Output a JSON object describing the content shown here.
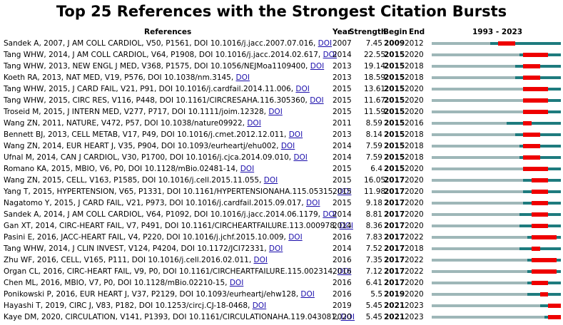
{
  "title": "Top 25 References with the Strongest Citation Bursts",
  "headers": {
    "references": "References",
    "year": "Year",
    "strength": "Strength",
    "begin": "Begin",
    "end": "End",
    "range": "1993 - 2023"
  },
  "doi_label": "DOI",
  "colors": {
    "base": "#1e7b7e",
    "pre": "#9eb7b8",
    "burst": "#ee0000"
  },
  "chart_data": {
    "type": "table",
    "title": "Top 25 References with the Strongest Citation Bursts",
    "timeline_range": [
      1993,
      2023
    ],
    "columns": [
      "References",
      "Year",
      "Strength",
      "Begin",
      "End",
      "1993 - 2023"
    ],
    "rows": [
      {
        "ref": "Sandek A, 2007, J AM COLL CARDIOL, V50, P1561, DOI 10.1016/j.jacc.2007.07.016, ",
        "year": "2007",
        "strength": "7.45",
        "begin": "2009",
        "end": "2012"
      },
      {
        "ref": "Tang WHW, 2014, J AM COLL CARDIOL, V64, P1908, DOI 10.1016/j.jacc.2014.02.617, ",
        "year": "2014",
        "strength": "22.55",
        "begin": "2015",
        "end": "2020"
      },
      {
        "ref": "Tang WHW, 2013, NEW ENGL J MED, V368, P1575, DOI 10.1056/NEJMoa1109400, ",
        "year": "2013",
        "strength": "19.14",
        "begin": "2015",
        "end": "2018"
      },
      {
        "ref": "Koeth RA, 2013, NAT MED, V19, P576, DOI 10.1038/nm.3145, ",
        "year": "2013",
        "strength": "18.59",
        "begin": "2015",
        "end": "2018"
      },
      {
        "ref": "Tang WHW, 2015, J CARD FAIL, V21, P91, DOI 10.1016/j.cardfail.2014.11.006, ",
        "year": "2015",
        "strength": "13.61",
        "begin": "2015",
        "end": "2020"
      },
      {
        "ref": "Tang WHW, 2015, CIRC RES, V116, P448, DOI 10.1161/CIRCRESAHA.116.305360, ",
        "year": "2015",
        "strength": "11.67",
        "begin": "2015",
        "end": "2020"
      },
      {
        "ref": "Troseid M, 2015, J INTERN MED, V277, P717, DOI 10.1111/joim.12328, ",
        "year": "2015",
        "strength": "11.59",
        "begin": "2015",
        "end": "2020"
      },
      {
        "ref": "Wang ZN, 2011, NATURE, V472, P57, DOI 10.1038/nature09922, ",
        "year": "2011",
        "strength": "8.59",
        "begin": "2015",
        "end": "2016"
      },
      {
        "ref": "Bennett BJ, 2013, CELL METAB, V17, P49, DOI 10.1016/j.cmet.2012.12.011, ",
        "year": "2013",
        "strength": "8.14",
        "begin": "2015",
        "end": "2018"
      },
      {
        "ref": "Wang ZN, 2014, EUR HEART J, V35, P904, DOI 10.1093/eurheartj/ehu002, ",
        "year": "2014",
        "strength": "7.59",
        "begin": "2015",
        "end": "2018"
      },
      {
        "ref": "Ufnal M, 2014, CAN J CARDIOL, V30, P1700, DOI 10.1016/j.cjca.2014.09.010, ",
        "year": "2014",
        "strength": "7.59",
        "begin": "2015",
        "end": "2018"
      },
      {
        "ref": "Romano KA, 2015, MBIO, V6, P0, DOI 10.1128/mBio.02481-14, ",
        "year": "2015",
        "strength": "6.4",
        "begin": "2015",
        "end": "2020"
      },
      {
        "ref": "Wang ZN, 2015, CELL, V163, P1585, DOI 10.1016/j.cell.2015.11.055, ",
        "year": "2015",
        "strength": "16.05",
        "begin": "2017",
        "end": "2020"
      },
      {
        "ref": "Yang T, 2015, HYPERTENSION, V65, P1331, DOI 10.1161/HYPERTENSIONAHA.115.05315, ",
        "year": "2015",
        "strength": "11.98",
        "begin": "2017",
        "end": "2020"
      },
      {
        "ref": "Nagatomo Y, 2015, J CARD FAIL, V21, P973, DOI 10.1016/j.cardfail.2015.09.017, ",
        "year": "2015",
        "strength": "9.18",
        "begin": "2017",
        "end": "2020"
      },
      {
        "ref": "Sandek A, 2014, J AM COLL CARDIOL, V64, P1092, DOI 10.1016/j.jacc.2014.06.1179, ",
        "year": "2014",
        "strength": "8.81",
        "begin": "2017",
        "end": "2020"
      },
      {
        "ref": "Gan XT, 2014, CIRC-HEART FAIL, V7, P491, DOI 10.1161/CIRCHEARTFAILURE.113.000978, ",
        "year": "2014",
        "strength": "8.36",
        "begin": "2017",
        "end": "2020"
      },
      {
        "ref": "Pasini E, 2016, JACC-HEART FAIL, V4, P220, DOI 10.1016/j.jchf.2015.10.009, ",
        "year": "2016",
        "strength": "7.83",
        "begin": "2017",
        "end": "2022"
      },
      {
        "ref": "Tang WHW, 2014, J CLIN INVEST, V124, P4204, DOI 10.1172/JCI72331, ",
        "year": "2014",
        "strength": "7.52",
        "begin": "2017",
        "end": "2018"
      },
      {
        "ref": "Zhu WF, 2016, CELL, V165, P111, DOI 10.1016/j.cell.2016.02.011, ",
        "year": "2016",
        "strength": "7.35",
        "begin": "2017",
        "end": "2022"
      },
      {
        "ref": "Organ CL, 2016, CIRC-HEART FAIL, V9, P0, DOI 10.1161/CIRCHEARTFAILURE.115.002314, ",
        "year": "2016",
        "strength": "7.12",
        "begin": "2017",
        "end": "2022"
      },
      {
        "ref": "Chen ML, 2016, MBIO, V7, P0, DOI 10.1128/mBio.02210-15, ",
        "year": "2016",
        "strength": "6.41",
        "begin": "2017",
        "end": "2020"
      },
      {
        "ref": "Ponikowski P, 2016, EUR HEART J, V37, P2129, DOI 10.1093/eurheartj/ehw128, ",
        "year": "2016",
        "strength": "5.5",
        "begin": "2019",
        "end": "2020"
      },
      {
        "ref": "Hayashi T, 2019, CIRC J, V83, P182, DOI 10.1253/circj.CJ-18-0468, ",
        "year": "2019",
        "strength": "5.45",
        "begin": "2021",
        "end": "2023"
      },
      {
        "ref": "Kaye DM, 2020, CIRCULATION, V141, P1393, DOI 10.1161/CIRCULATIONAHA.119.043081, ",
        "year": "2020",
        "strength": "5.45",
        "begin": "2021",
        "end": "2023"
      }
    ]
  }
}
